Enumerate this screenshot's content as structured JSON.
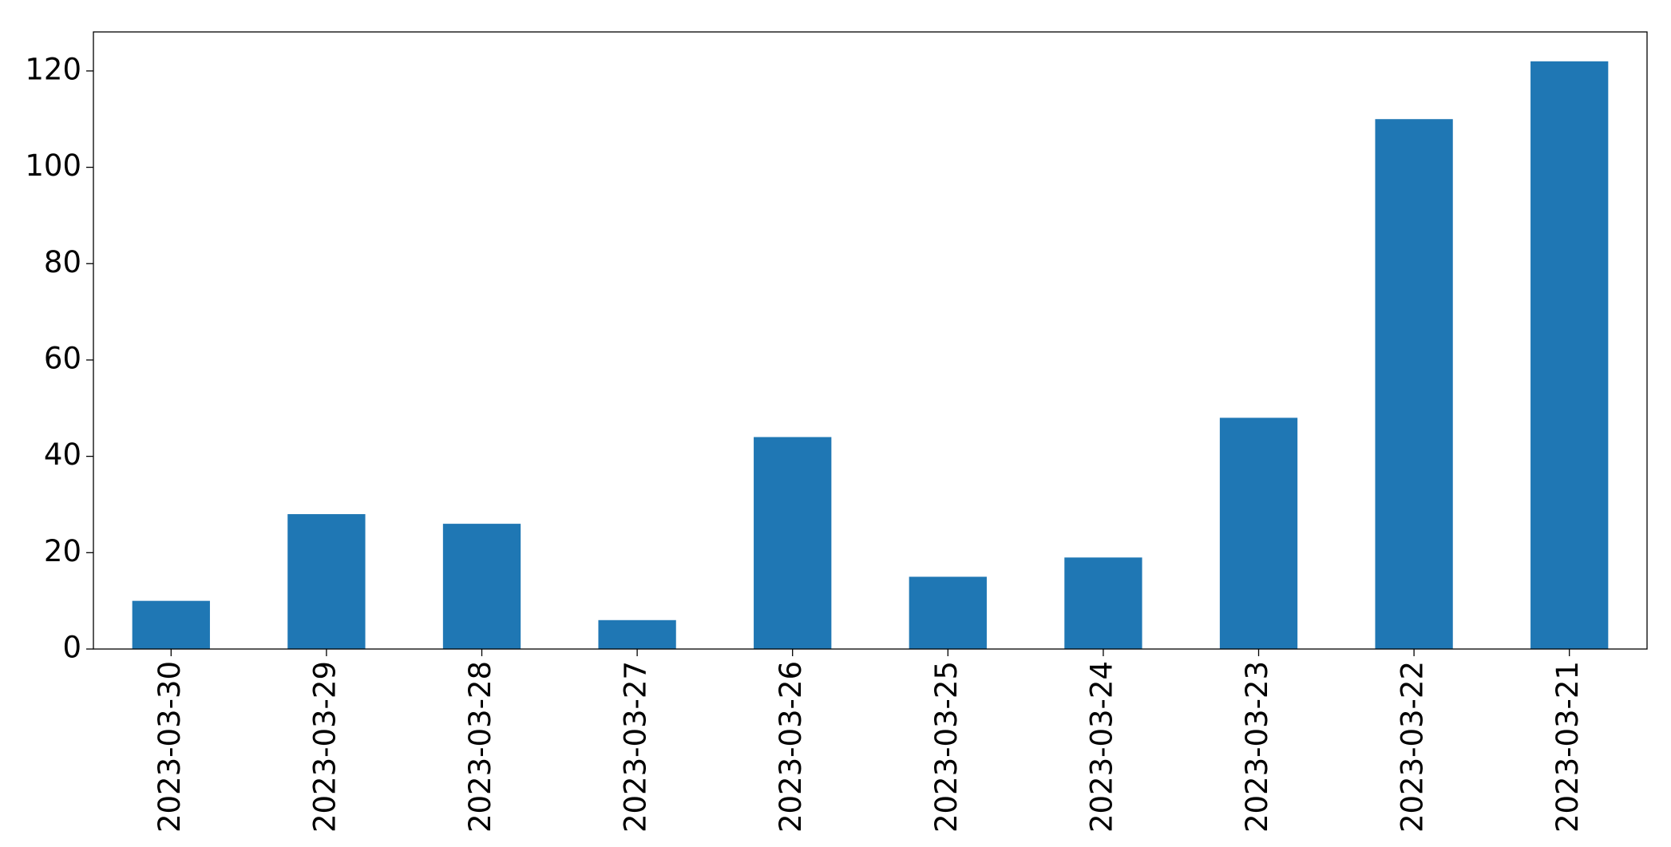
{
  "chart_data": {
    "type": "bar",
    "categories": [
      "2023-03-30",
      "2023-03-29",
      "2023-03-28",
      "2023-03-27",
      "2023-03-26",
      "2023-03-25",
      "2023-03-24",
      "2023-03-23",
      "2023-03-22",
      "2023-03-21"
    ],
    "values": [
      10,
      28,
      26,
      6,
      44,
      15,
      19,
      48,
      110,
      122
    ],
    "color": "#1f77b4",
    "ylim": [
      0,
      128.1
    ],
    "yticks": [
      0,
      20,
      40,
      60,
      80,
      100,
      120
    ],
    "grid": false
  }
}
